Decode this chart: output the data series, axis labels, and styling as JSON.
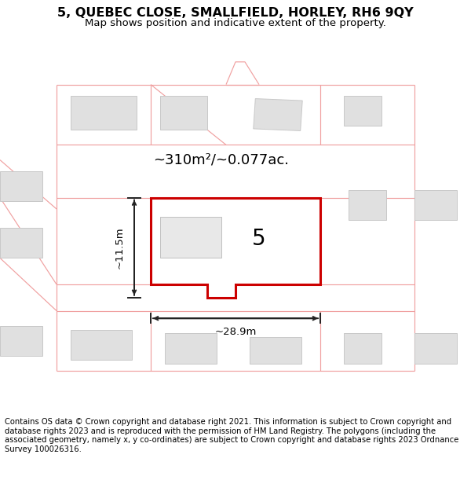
{
  "title": "5, QUEBEC CLOSE, SMALLFIELD, HORLEY, RH6 9QY",
  "subtitle": "Map shows position and indicative extent of the property.",
  "footer": "Contains OS data © Crown copyright and database right 2021. This information is subject to Crown copyright and database rights 2023 and is reproduced with the permission of HM Land Registry. The polygons (including the associated geometry, namely x, y co-ordinates) are subject to Crown copyright and database rights 2023 Ordnance Survey 100026316.",
  "bg_color": "#ffffff",
  "map_bg": "#f7f7f7",
  "plot_border_color": "#cc0000",
  "neighbor_fill": "#e0e0e0",
  "neighbor_edge": "#c8c8c8",
  "road_color": "#f0a0a0",
  "plot_fill": "#ffffff",
  "dim_color": "#222222",
  "area_text": "~310m²/~0.077ac.",
  "width_label": "~28.9m",
  "height_label": "~11.5m",
  "plot_number": "5",
  "title_fontsize": 11.5,
  "subtitle_fontsize": 9.5,
  "footer_fontsize": 7.2,
  "area_fontsize": 13,
  "dim_fontsize": 9.5,
  "plot_num_fontsize": 20
}
